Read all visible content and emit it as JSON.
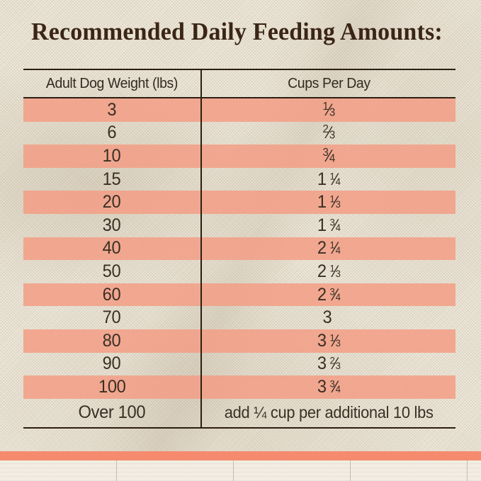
{
  "title": "Recommended Daily Feeding Amounts:",
  "table": {
    "columns": [
      "Adult Dog Weight (lbs)",
      "Cups Per Day"
    ],
    "rows": [
      {
        "weight": "3",
        "cups": {
          "frac": "1/3"
        },
        "striped": true
      },
      {
        "weight": "6",
        "cups": {
          "frac": "2/3"
        },
        "striped": false
      },
      {
        "weight": "10",
        "cups": {
          "frac": "3/4"
        },
        "striped": true
      },
      {
        "weight": "15",
        "cups": {
          "whole": "1",
          "frac": "1/4"
        },
        "striped": false
      },
      {
        "weight": "20",
        "cups": {
          "whole": "1",
          "frac": "1/3"
        },
        "striped": true
      },
      {
        "weight": "30",
        "cups": {
          "whole": "1",
          "frac": "3/4"
        },
        "striped": false
      },
      {
        "weight": "40",
        "cups": {
          "whole": "2",
          "frac": "1/4"
        },
        "striped": true
      },
      {
        "weight": "50",
        "cups": {
          "whole": "2",
          "frac": "1/3"
        },
        "striped": false
      },
      {
        "weight": "60",
        "cups": {
          "whole": "2",
          "frac": "3/4"
        },
        "striped": true
      },
      {
        "weight": "70",
        "cups": {
          "whole": "3"
        },
        "striped": false
      },
      {
        "weight": "80",
        "cups": {
          "whole": "3",
          "frac": "1/3"
        },
        "striped": true
      },
      {
        "weight": "90",
        "cups": {
          "whole": "3",
          "frac": "2/3"
        },
        "striped": false
      },
      {
        "weight": "100",
        "cups": {
          "whole": "3",
          "frac": "3/4"
        },
        "striped": true
      },
      {
        "weight": "Over 100",
        "cups": {
          "text": "add ¼ cup per additional 10 lbs"
        },
        "striped": false,
        "tall": true
      }
    ]
  },
  "colors": {
    "stripe": "rgba(243,157,133,0.85)",
    "bar": "#f58a6e",
    "line": "#2c1e12",
    "title": "#3b2516",
    "text": "#3a2f25",
    "bg": "#e9e2d2",
    "wood": "#f2ede3"
  }
}
